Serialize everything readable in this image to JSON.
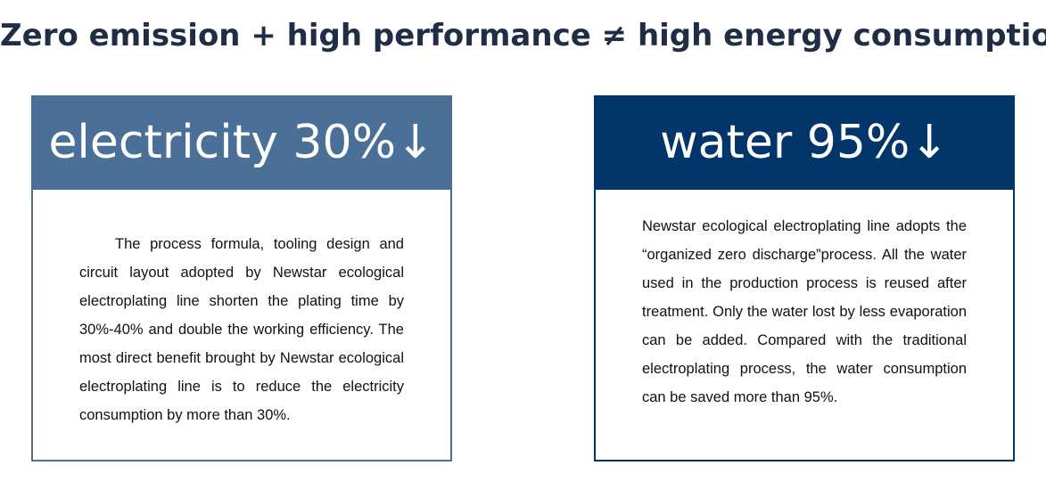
{
  "header": {
    "title": "Zero emission + high performance ≠ high energy consumption"
  },
  "cards": [
    {
      "heading": "electricity 30%↓",
      "text": "The process formula, tooling design and circuit layout adopted by Newstar ecological electroplating line shorten the plating time by 30%-40% and double the working efficiency. The most direct benefit brought by Newstar ecological electroplating line is to reduce the electricity consumption by more than 30%."
    },
    {
      "heading": "water 95%↓",
      "text": "Newstar ecological electroplating line adopts the “organized zero discharge”process. All the water used in the production process is reused after treatment. Only the water lost by less evaporation can be added. Compared with the traditional electroplating process, the water consumption can be saved more than 95%."
    }
  ]
}
